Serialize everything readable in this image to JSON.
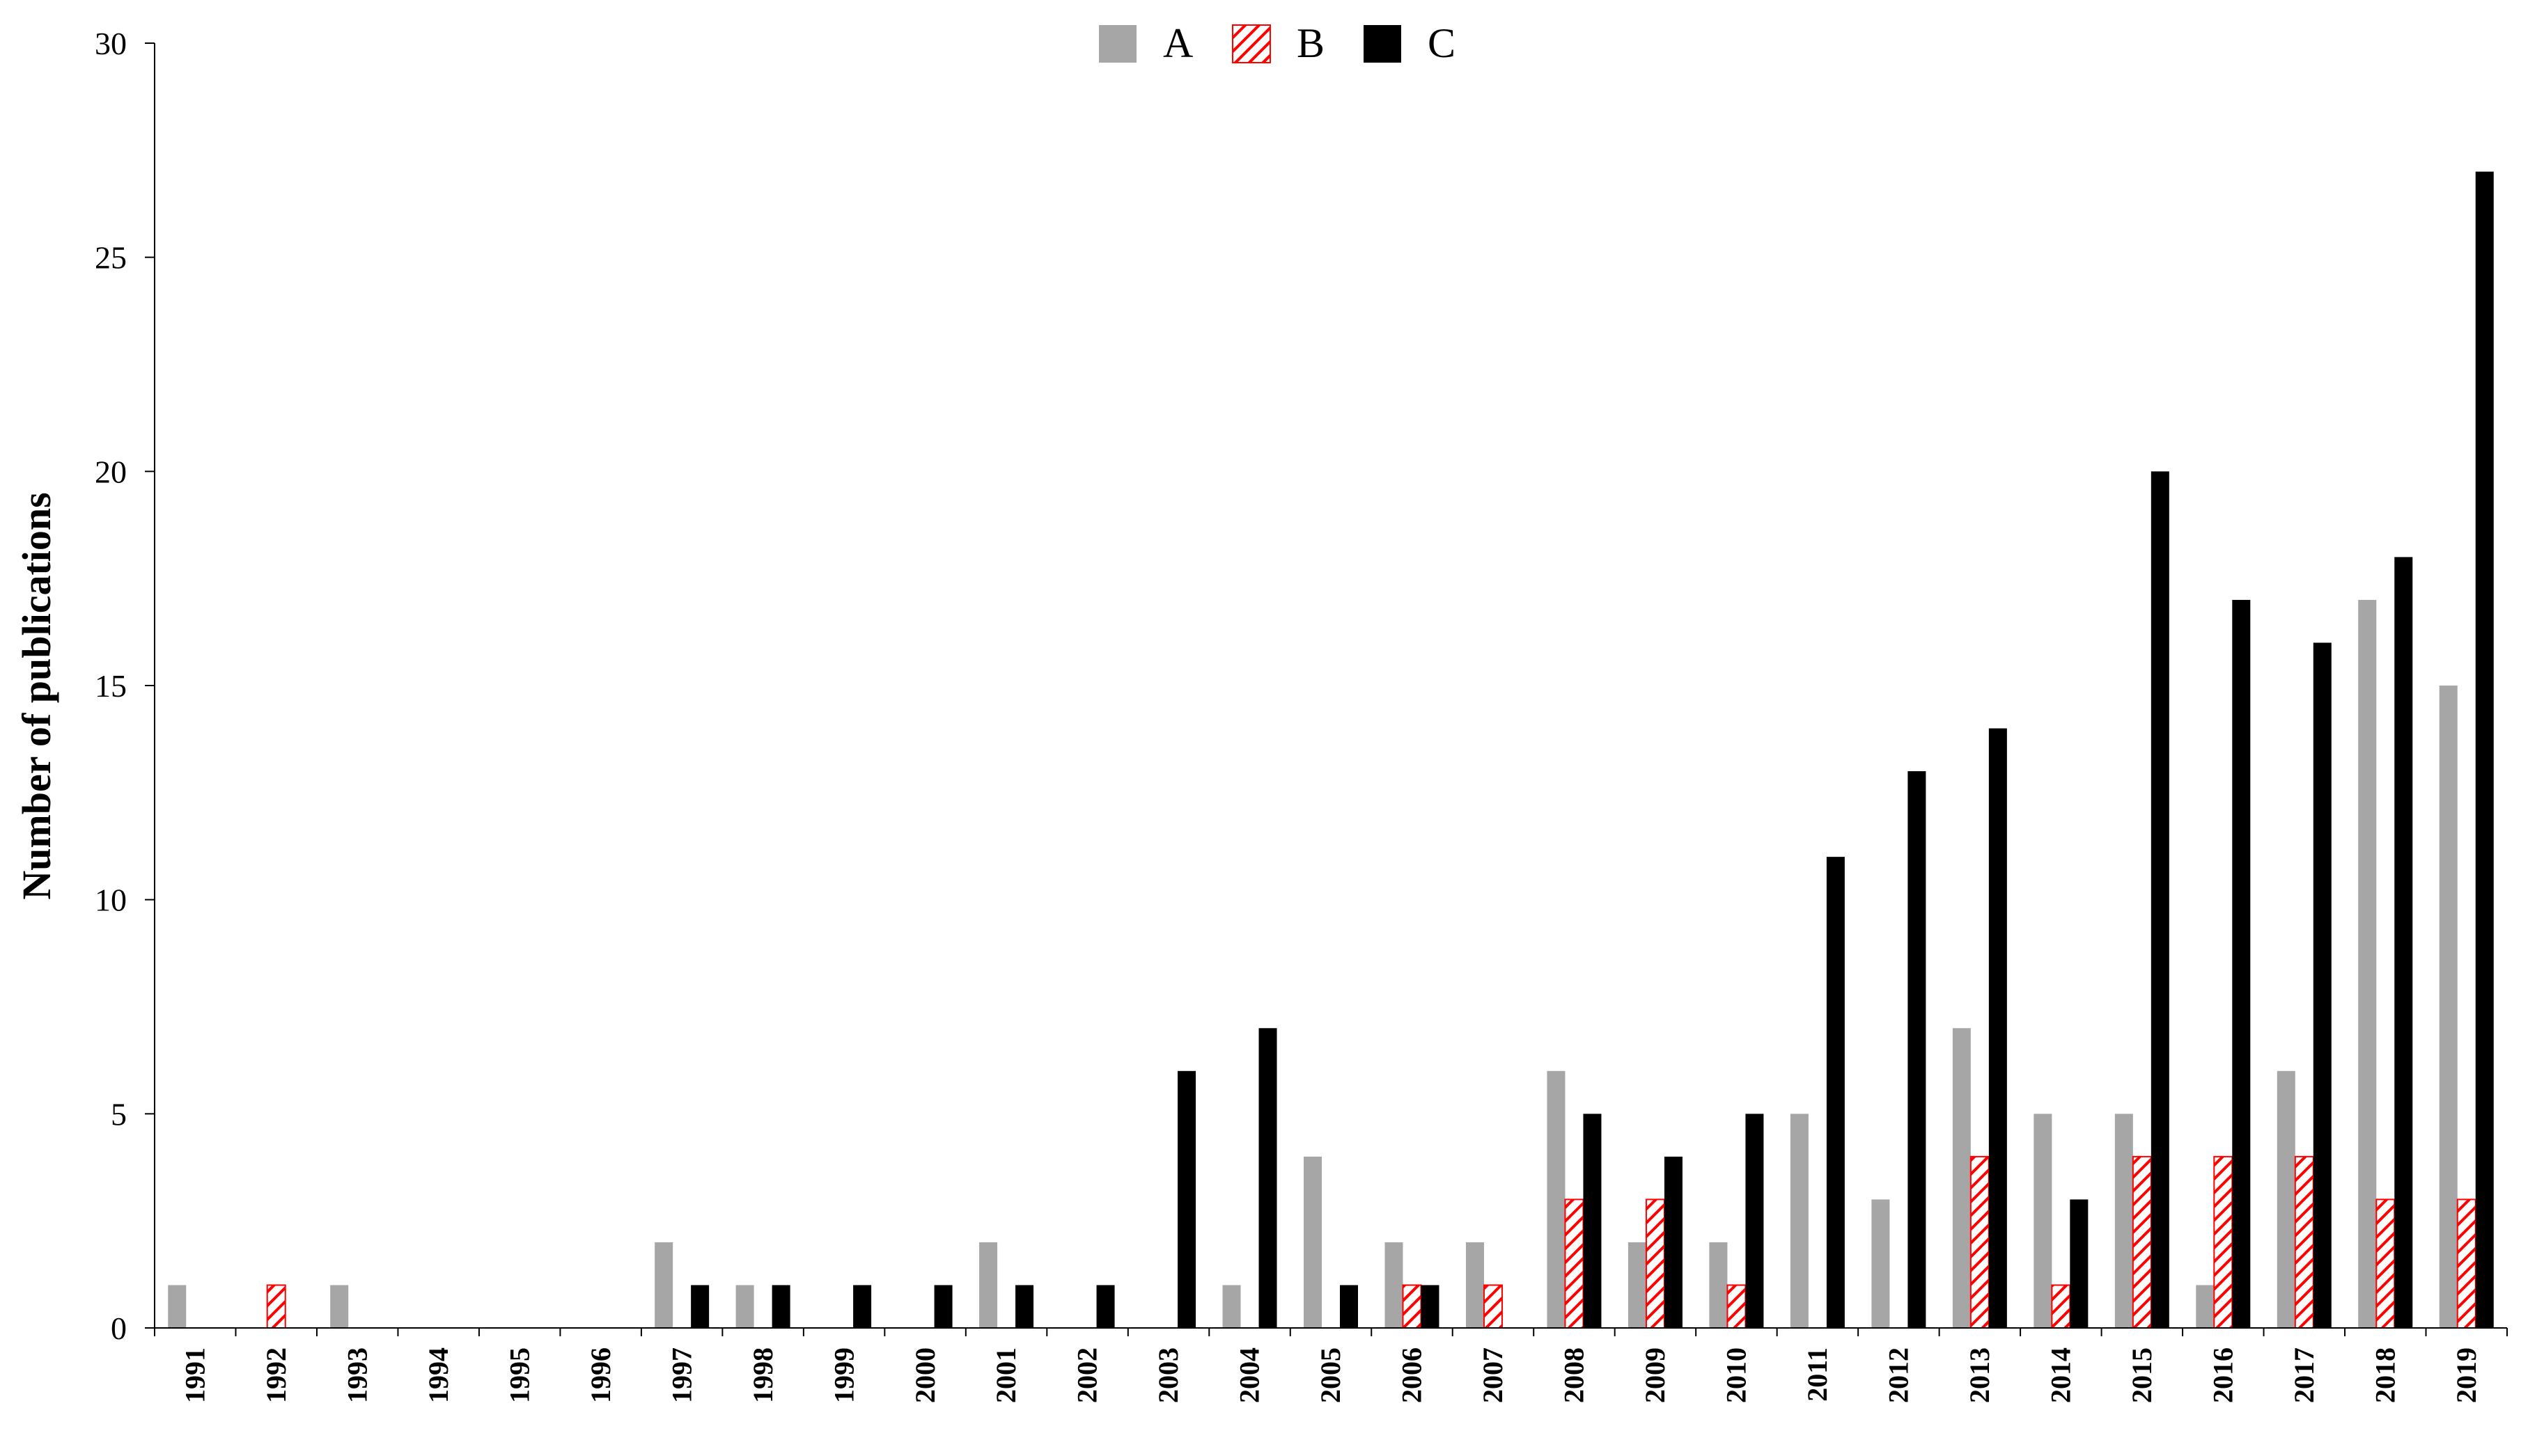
{
  "chart_data": {
    "type": "bar",
    "ylabel": "Number of publications",
    "xlabel": "",
    "ylim": [
      0,
      30
    ],
    "yticks": [
      "0",
      "5",
      "10",
      "15",
      "20",
      "25",
      "30"
    ],
    "grid": false,
    "legend_position": "top-center",
    "categories": [
      "1991",
      "1992",
      "1993",
      "1994",
      "1995",
      "1996",
      "1997",
      "1998",
      "1999",
      "2000",
      "2001",
      "2002",
      "2003",
      "2004",
      "2005",
      "2006",
      "2007",
      "2008",
      "2009",
      "2010",
      "2011",
      "2012",
      "2013",
      "2014",
      "2015",
      "2016",
      "2017",
      "2018",
      "2019"
    ],
    "series": [
      {
        "name": "A",
        "color": "#a6a6a6",
        "pattern": "solid",
        "values": [
          1,
          0,
          1,
          0,
          0,
          0,
          2,
          1,
          0,
          0,
          2,
          0,
          0,
          1,
          4,
          2,
          2,
          6,
          2,
          2,
          5,
          3,
          7,
          5,
          5,
          1,
          6,
          17,
          15
        ]
      },
      {
        "name": "B",
        "color": "#ff0000",
        "pattern": "diagonal-hatch",
        "values": [
          0,
          1,
          0,
          0,
          0,
          0,
          0,
          0,
          0,
          0,
          0,
          0,
          0,
          0,
          0,
          1,
          1,
          3,
          3,
          1,
          0,
          0,
          4,
          1,
          4,
          4,
          4,
          3,
          3
        ]
      },
      {
        "name": "C",
        "color": "#000000",
        "pattern": "solid",
        "values": [
          0,
          0,
          0,
          0,
          0,
          0,
          1,
          1,
          1,
          1,
          1,
          1,
          6,
          7,
          1,
          1,
          0,
          5,
          4,
          5,
          11,
          13,
          14,
          3,
          20,
          17,
          16,
          18,
          27
        ]
      }
    ]
  }
}
